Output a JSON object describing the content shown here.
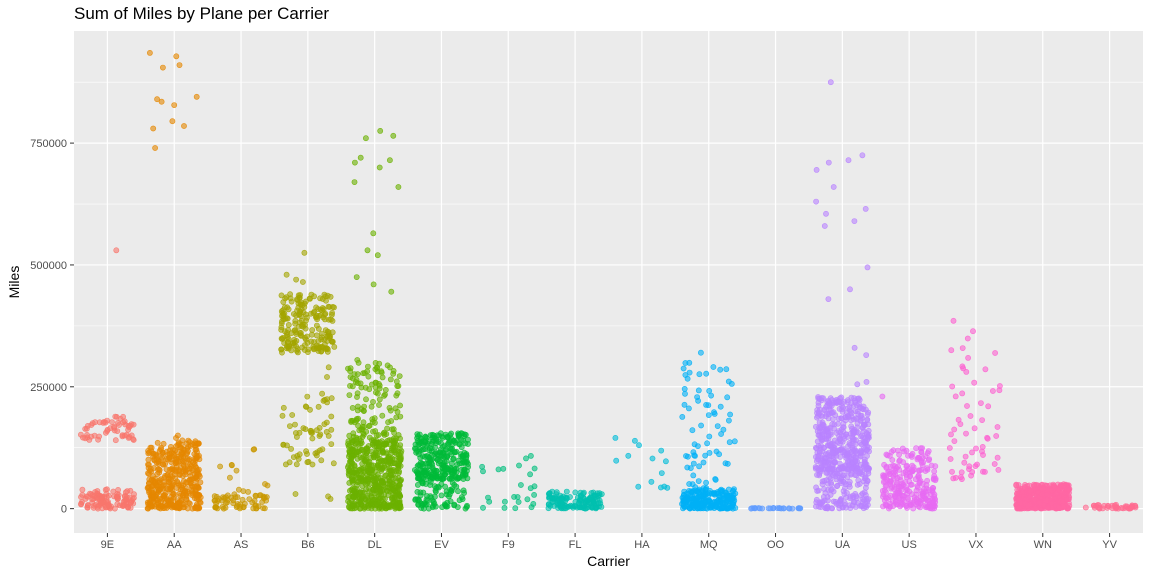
{
  "chart_data": {
    "type": "scatter",
    "title": "Sum of Miles by Plane per Carrier",
    "xlabel": "Carrier",
    "ylabel": "Miles",
    "ylim": [
      -50000,
      980000
    ],
    "yticks": [
      0,
      250000,
      500000,
      750000
    ],
    "ytick_labels": [
      "0",
      "250000",
      "500000",
      "750000"
    ],
    "grid": true,
    "legend": "none",
    "background": "#ebebeb",
    "point_opacity": 0.6,
    "categories": [
      "9E",
      "AA",
      "AS",
      "B6",
      "DL",
      "EV",
      "F9",
      "FL",
      "HA",
      "MQ",
      "OO",
      "UA",
      "US",
      "VX",
      "WN",
      "YV"
    ],
    "colors": [
      "#F8766D",
      "#E58700",
      "#C99800",
      "#A3A500",
      "#6BB100",
      "#00BA38",
      "#00BF7D",
      "#00C0AF",
      "#00BCD8",
      "#00B0F6",
      "#619CFF",
      "#B983FF",
      "#E76BF3",
      "#FD61D1",
      "#FF67A4",
      "#FF6C91"
    ],
    "series": [
      {
        "name": "9E",
        "clusters": [
          [
            110,
            0,
            40000
          ],
          [
            55,
            140000,
            190000
          ]
        ],
        "outliers": [
          530000
        ]
      },
      {
        "name": "AA",
        "clusters": [
          [
            420,
            0,
            140000
          ]
        ],
        "outliers": [
          935000,
          928000,
          910000,
          905000,
          845000,
          840000,
          835000,
          828000,
          795000,
          785000,
          780000,
          740000,
          150000,
          145000,
          140000
        ]
      },
      {
        "name": "AS",
        "clusters": [
          [
            60,
            0,
            30000
          ],
          [
            12,
            30000,
            125000
          ]
        ],
        "outliers": []
      },
      {
        "name": "B6",
        "clusters": [
          [
            200,
            320000,
            440000
          ],
          [
            60,
            90000,
            240000
          ]
        ],
        "outliers": [
          525000,
          480000,
          470000,
          465000,
          290000,
          270000,
          30000,
          25000,
          20000
        ]
      },
      {
        "name": "DL",
        "clusters": [
          [
            520,
            0,
            140000
          ],
          [
            130,
            140000,
            300000
          ]
        ],
        "outliers": [
          775000,
          765000,
          760000,
          720000,
          715000,
          710000,
          700000,
          670000,
          660000,
          565000,
          530000,
          520000,
          475000,
          460000,
          445000,
          305000
        ]
      },
      {
        "name": "EV",
        "clusters": [
          [
            280,
            60000,
            155000
          ],
          [
            80,
            0,
            60000
          ]
        ],
        "outliers": []
      },
      {
        "name": "F9",
        "clusters": [
          [
            25,
            0,
            110000
          ]
        ],
        "outliers": []
      },
      {
        "name": "FL",
        "clusters": [
          [
            130,
            0,
            35000
          ]
        ],
        "outliers": []
      },
      {
        "name": "HA",
        "clusters": [
          [
            14,
            40000,
            200000
          ]
        ],
        "outliers": []
      },
      {
        "name": "MQ",
        "clusters": [
          [
            220,
            0,
            40000
          ],
          [
            70,
            40000,
            300000
          ]
        ],
        "outliers": [
          320000
        ]
      },
      {
        "name": "OO",
        "clusters": [
          [
            26,
            0,
            1500
          ]
        ],
        "outliers": []
      },
      {
        "name": "UA",
        "clusters": [
          [
            420,
            80000,
            230000
          ],
          [
            150,
            0,
            80000
          ]
        ],
        "outliers": [
          875000,
          725000,
          715000,
          710000,
          695000,
          660000,
          630000,
          615000,
          605000,
          590000,
          580000,
          495000,
          450000,
          430000,
          330000,
          315000,
          260000,
          255000
        ]
      },
      {
        "name": "US",
        "clusters": [
          [
            190,
            0,
            75000
          ],
          [
            70,
            75000,
            125000
          ]
        ],
        "outliers": [
          230000
        ]
      },
      {
        "name": "VX",
        "clusters": [
          [
            60,
            60000,
            390000
          ]
        ],
        "outliers": []
      },
      {
        "name": "WN",
        "clusters": [
          [
            500,
            0,
            50000
          ]
        ],
        "outliers": []
      },
      {
        "name": "YV",
        "clusters": [
          [
            40,
            0,
            8000
          ]
        ],
        "outliers": []
      }
    ]
  }
}
